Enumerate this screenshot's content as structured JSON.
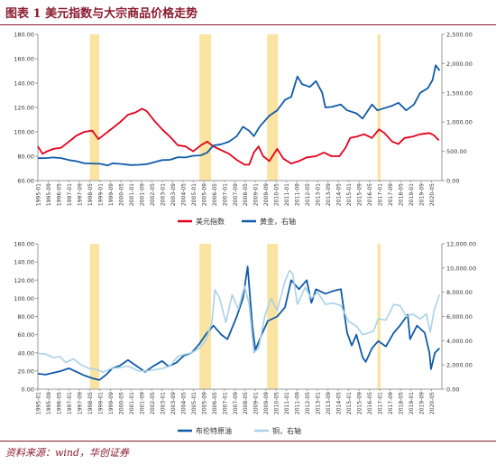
{
  "page": {
    "title": "图表 1   美元指数与大宗商品价格走势",
    "source": "资料来源：wind，华创证券"
  },
  "colors": {
    "red": "#e3001b",
    "blue": "#0f5ba9",
    "lightblue": "#a9d1e8",
    "band": "#fbe3a1",
    "title": "#8a1b2f",
    "axis": "#999999"
  },
  "x_tick_labels": [
    "1995-01",
    "1995-09",
    "1996-05",
    "1997-01",
    "1997-09",
    "1998-05",
    "1999-01",
    "1999-09",
    "2000-05",
    "2001-01",
    "2001-09",
    "2002-05",
    "2003-01",
    "2003-09",
    "2004-05",
    "2005-01",
    "2005-09",
    "2006-05",
    "2007-01",
    "2007-09",
    "2008-05",
    "2009-01",
    "2009-09",
    "2010-05",
    "2011-01",
    "2011-09",
    "2012-05",
    "2013-01",
    "2013-09",
    "2014-05",
    "2015-01",
    "2015-09",
    "2016-05",
    "2017-01",
    "2017-09",
    "2018-05",
    "2019-01",
    "2019-09",
    "2020-05"
  ],
  "highlight_periods": [
    [
      1998.35,
      1998.95
    ],
    [
      2005.4,
      2006.15
    ],
    [
      2009.75,
      2010.45
    ],
    [
      2016.85,
      2017.05
    ]
  ],
  "chart_data": [
    {
      "type": "line",
      "x_range": [
        1995.0,
        2021.0
      ],
      "ylim_left": [
        60,
        180
      ],
      "ylim_right": [
        0,
        2500
      ],
      "y_ticks_left": [
        "60.00",
        "80.00",
        "100.00",
        "120.00",
        "140.00",
        "160.00",
        "180.00"
      ],
      "y_ticks_right": [
        "0.00",
        "500.00",
        "1,000.00",
        "1,500.00",
        "2,000.00",
        "2,500.00"
      ],
      "series": [
        {
          "name": "美元指数",
          "axis": "left",
          "color": "#e3001b",
          "points": [
            [
              1995.0,
              88
            ],
            [
              1995.3,
              82
            ],
            [
              1995.6,
              84
            ],
            [
              1996.0,
              86
            ],
            [
              1996.5,
              87
            ],
            [
              1997.0,
              92
            ],
            [
              1997.5,
              97
            ],
            [
              1998.0,
              100
            ],
            [
              1998.5,
              101
            ],
            [
              1998.9,
              94
            ],
            [
              1999.3,
              98
            ],
            [
              1999.8,
              103
            ],
            [
              2000.3,
              108
            ],
            [
              2000.8,
              114
            ],
            [
              2001.3,
              116
            ],
            [
              2001.7,
              119
            ],
            [
              2002.0,
              117
            ],
            [
              2002.5,
              109
            ],
            [
              2003.0,
              102
            ],
            [
              2003.5,
              96
            ],
            [
              2004.0,
              89
            ],
            [
              2004.5,
              88
            ],
            [
              2005.0,
              84
            ],
            [
              2005.5,
              89
            ],
            [
              2005.9,
              92
            ],
            [
              2006.3,
              88
            ],
            [
              2006.8,
              85
            ],
            [
              2007.3,
              82
            ],
            [
              2007.8,
              77
            ],
            [
              2008.3,
              73
            ],
            [
              2008.6,
              73
            ],
            [
              2008.9,
              83
            ],
            [
              2009.2,
              88
            ],
            [
              2009.5,
              80
            ],
            [
              2009.9,
              76
            ],
            [
              2010.4,
              86
            ],
            [
              2010.8,
              78
            ],
            [
              2011.3,
              74
            ],
            [
              2011.8,
              76
            ],
            [
              2012.3,
              79
            ],
            [
              2012.9,
              80
            ],
            [
              2013.4,
              83
            ],
            [
              2013.9,
              80
            ],
            [
              2014.4,
              80
            ],
            [
              2014.8,
              87
            ],
            [
              2015.1,
              95
            ],
            [
              2015.5,
              96
            ],
            [
              2016.0,
              98
            ],
            [
              2016.5,
              95
            ],
            [
              2016.95,
              102
            ],
            [
              2017.3,
              99
            ],
            [
              2017.8,
              92
            ],
            [
              2018.2,
              90
            ],
            [
              2018.6,
              95
            ],
            [
              2019.1,
              96
            ],
            [
              2019.6,
              98
            ],
            [
              2020.2,
              99
            ],
            [
              2020.5,
              97
            ],
            [
              2020.8,
              93
            ]
          ]
        },
        {
          "name": "黄金，右轴",
          "axis": "right",
          "color": "#0f5ba9",
          "points": [
            [
              1995.0,
              383
            ],
            [
              1995.5,
              385
            ],
            [
              1996.0,
              395
            ],
            [
              1996.5,
              385
            ],
            [
              1997.0,
              350
            ],
            [
              1997.5,
              330
            ],
            [
              1998.0,
              295
            ],
            [
              1998.5,
              292
            ],
            [
              1999.0,
              287
            ],
            [
              1999.5,
              260
            ],
            [
              1999.8,
              295
            ],
            [
              2000.3,
              285
            ],
            [
              2001.0,
              265
            ],
            [
              2001.5,
              270
            ],
            [
              2002.0,
              280
            ],
            [
              2002.5,
              315
            ],
            [
              2003.0,
              350
            ],
            [
              2003.5,
              355
            ],
            [
              2004.0,
              400
            ],
            [
              2004.5,
              395
            ],
            [
              2005.0,
              425
            ],
            [
              2005.5,
              430
            ],
            [
              2005.9,
              480
            ],
            [
              2006.3,
              600
            ],
            [
              2006.8,
              620
            ],
            [
              2007.3,
              665
            ],
            [
              2007.8,
              760
            ],
            [
              2008.2,
              920
            ],
            [
              2008.6,
              850
            ],
            [
              2008.9,
              760
            ],
            [
              2009.3,
              930
            ],
            [
              2009.9,
              1110
            ],
            [
              2010.4,
              1200
            ],
            [
              2010.9,
              1380
            ],
            [
              2011.3,
              1430
            ],
            [
              2011.7,
              1780
            ],
            [
              2012.0,
              1650
            ],
            [
              2012.5,
              1600
            ],
            [
              2012.9,
              1700
            ],
            [
              2013.3,
              1500
            ],
            [
              2013.5,
              1250
            ],
            [
              2013.9,
              1260
            ],
            [
              2014.5,
              1300
            ],
            [
              2014.9,
              1200
            ],
            [
              2015.5,
              1150
            ],
            [
              2015.9,
              1060
            ],
            [
              2016.5,
              1300
            ],
            [
              2016.85,
              1200
            ],
            [
              2017.2,
              1230
            ],
            [
              2017.8,
              1280
            ],
            [
              2018.2,
              1330
            ],
            [
              2018.7,
              1200
            ],
            [
              2019.2,
              1300
            ],
            [
              2019.6,
              1500
            ],
            [
              2020.1,
              1580
            ],
            [
              2020.4,
              1720
            ],
            [
              2020.6,
              1970
            ],
            [
              2020.85,
              1880
            ]
          ]
        }
      ]
    },
    {
      "type": "line",
      "x_range": [
        1995.0,
        2021.0
      ],
      "ylim_left": [
        0,
        160
      ],
      "ylim_right": [
        0,
        12000
      ],
      "y_ticks_left": [
        "0.00",
        "20.00",
        "40.00",
        "60.00",
        "80.00",
        "100.00",
        "120.00",
        "140.00",
        "160.00"
      ],
      "y_ticks_right": [
        "0.00",
        "2,000.00",
        "4,000.00",
        "6,000.00",
        "8,000.00",
        "10,000.00",
        "12,000.00"
      ],
      "series": [
        {
          "name": "布伦特原油",
          "axis": "left",
          "color": "#0f5ba9",
          "points": [
            [
              1995.0,
              17
            ],
            [
              1995.5,
              16
            ],
            [
              1996.0,
              18
            ],
            [
              1996.5,
              20
            ],
            [
              1997.0,
              23
            ],
            [
              1997.5,
              19
            ],
            [
              1998.0,
              15
            ],
            [
              1998.5,
              12
            ],
            [
              1998.95,
              10
            ],
            [
              1999.4,
              16
            ],
            [
              1999.8,
              23
            ],
            [
              2000.3,
              26
            ],
            [
              2000.8,
              32
            ],
            [
              2001.3,
              26
            ],
            [
              2001.9,
              19
            ],
            [
              2002.4,
              25
            ],
            [
              2003.0,
              31
            ],
            [
              2003.4,
              25
            ],
            [
              2003.9,
              29
            ],
            [
              2004.4,
              37
            ],
            [
              2004.9,
              40
            ],
            [
              2005.4,
              50
            ],
            [
              2005.8,
              60
            ],
            [
              2006.3,
              70
            ],
            [
              2006.8,
              60
            ],
            [
              2007.2,
              55
            ],
            [
              2007.8,
              80
            ],
            [
              2008.2,
              100
            ],
            [
              2008.5,
              135
            ],
            [
              2008.8,
              70
            ],
            [
              2009.0,
              43
            ],
            [
              2009.4,
              60
            ],
            [
              2009.8,
              75
            ],
            [
              2010.4,
              80
            ],
            [
              2010.9,
              90
            ],
            [
              2011.3,
              120
            ],
            [
              2011.8,
              110
            ],
            [
              2012.3,
              120
            ],
            [
              2012.6,
              95
            ],
            [
              2012.9,
              110
            ],
            [
              2013.5,
              105
            ],
            [
              2014.0,
              108
            ],
            [
              2014.5,
              110
            ],
            [
              2014.9,
              62
            ],
            [
              2015.2,
              48
            ],
            [
              2015.5,
              60
            ],
            [
              2015.9,
              35
            ],
            [
              2016.1,
              30
            ],
            [
              2016.5,
              45
            ],
            [
              2016.9,
              53
            ],
            [
              2017.4,
              47
            ],
            [
              2017.9,
              62
            ],
            [
              2018.3,
              70
            ],
            [
              2018.8,
              82
            ],
            [
              2018.95,
              55
            ],
            [
              2019.4,
              70
            ],
            [
              2019.9,
              62
            ],
            [
              2020.2,
              40
            ],
            [
              2020.3,
              22
            ],
            [
              2020.55,
              40
            ],
            [
              2020.85,
              45
            ]
          ]
        },
        {
          "name": "铜，右轴",
          "axis": "right",
          "color": "#a9d1e8",
          "points": [
            [
              1995.0,
              2950
            ],
            [
              1995.5,
              2900
            ],
            [
              1996.0,
              2600
            ],
            [
              1996.4,
              2700
            ],
            [
              1996.8,
              2200
            ],
            [
              1997.3,
              2500
            ],
            [
              1997.8,
              2000
            ],
            [
              1998.3,
              1700
            ],
            [
              1998.8,
              1600
            ],
            [
              1999.2,
              1400
            ],
            [
              1999.7,
              1700
            ],
            [
              2000.3,
              1800
            ],
            [
              2000.8,
              1900
            ],
            [
              2001.5,
              1500
            ],
            [
              2002.0,
              1500
            ],
            [
              2002.5,
              1600
            ],
            [
              2003.0,
              1700
            ],
            [
              2003.5,
              1900
            ],
            [
              2004.0,
              2700
            ],
            [
              2004.5,
              2900
            ],
            [
              2004.9,
              3000
            ],
            [
              2005.4,
              3400
            ],
            [
              2005.8,
              4000
            ],
            [
              2006.2,
              5500
            ],
            [
              2006.4,
              8200
            ],
            [
              2006.7,
              7500
            ],
            [
              2007.1,
              5500
            ],
            [
              2007.5,
              7800
            ],
            [
              2007.9,
              6600
            ],
            [
              2008.3,
              8500
            ],
            [
              2008.6,
              7000
            ],
            [
              2008.9,
              3000
            ],
            [
              2009.2,
              3400
            ],
            [
              2009.6,
              6000
            ],
            [
              2010.0,
              7500
            ],
            [
              2010.4,
              6500
            ],
            [
              2010.9,
              8900
            ],
            [
              2011.2,
              9800
            ],
            [
              2011.4,
              9500
            ],
            [
              2011.7,
              7000
            ],
            [
              2012.2,
              8400
            ],
            [
              2012.6,
              7500
            ],
            [
              2013.0,
              8000
            ],
            [
              2013.5,
              7000
            ],
            [
              2014.0,
              7100
            ],
            [
              2014.5,
              6900
            ],
            [
              2015.0,
              5600
            ],
            [
              2015.5,
              5200
            ],
            [
              2015.9,
              4500
            ],
            [
              2016.2,
              4600
            ],
            [
              2016.6,
              4800
            ],
            [
              2016.9,
              5800
            ],
            [
              2017.4,
              5700
            ],
            [
              2017.9,
              7000
            ],
            [
              2018.3,
              6900
            ],
            [
              2018.7,
              6000
            ],
            [
              2019.1,
              6200
            ],
            [
              2019.6,
              5800
            ],
            [
              2020.0,
              6200
            ],
            [
              2020.25,
              4700
            ],
            [
              2020.5,
              6500
            ],
            [
              2020.85,
              7800
            ]
          ]
        }
      ]
    }
  ]
}
